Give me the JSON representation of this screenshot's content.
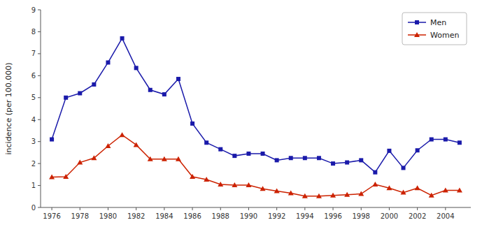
{
  "chart_data": {
    "type": "line",
    "y_label": "incidence (per 100.000)",
    "x": [
      1976,
      1977,
      1978,
      1979,
      1980,
      1981,
      1982,
      1983,
      1984,
      1985,
      1986,
      1987,
      1988,
      1989,
      1990,
      1991,
      1992,
      1993,
      1994,
      1995,
      1996,
      1997,
      1998,
      1999,
      2000,
      2001,
      2002,
      2003,
      2004,
      2005
    ],
    "series": [
      {
        "name": "Men",
        "color": "#1a1aaa",
        "marker": "square",
        "values": [
          3.1,
          5.0,
          5.2,
          5.6,
          6.6,
          7.7,
          6.35,
          5.35,
          5.15,
          5.85,
          3.82,
          2.95,
          2.65,
          2.35,
          2.45,
          2.45,
          2.15,
          2.25,
          2.25,
          2.25,
          2.0,
          2.05,
          2.15,
          1.6,
          2.58,
          1.8,
          2.6,
          3.1,
          3.1,
          2.95
        ]
      },
      {
        "name": "Women",
        "color": "#cc2200",
        "marker": "triangle",
        "values": [
          1.38,
          1.4,
          2.05,
          2.25,
          2.8,
          3.3,
          2.85,
          2.2,
          2.2,
          2.2,
          1.4,
          1.27,
          1.05,
          1.02,
          1.02,
          0.85,
          0.75,
          0.65,
          0.52,
          0.52,
          0.55,
          0.58,
          0.62,
          1.05,
          0.88,
          0.68,
          0.88,
          0.55,
          0.78,
          0.78
        ]
      }
    ],
    "xlim": [
      1975.2,
      2005.8
    ],
    "xticks": [
      1976,
      1978,
      1980,
      1982,
      1984,
      1986,
      1988,
      1990,
      1992,
      1994,
      1996,
      1998,
      2000,
      2002,
      2004
    ],
    "ylim": [
      0,
      9
    ],
    "yticks": [
      0,
      1,
      2,
      3,
      4,
      5,
      6,
      7,
      8,
      9
    ],
    "grid": false,
    "legend": "upper right"
  }
}
